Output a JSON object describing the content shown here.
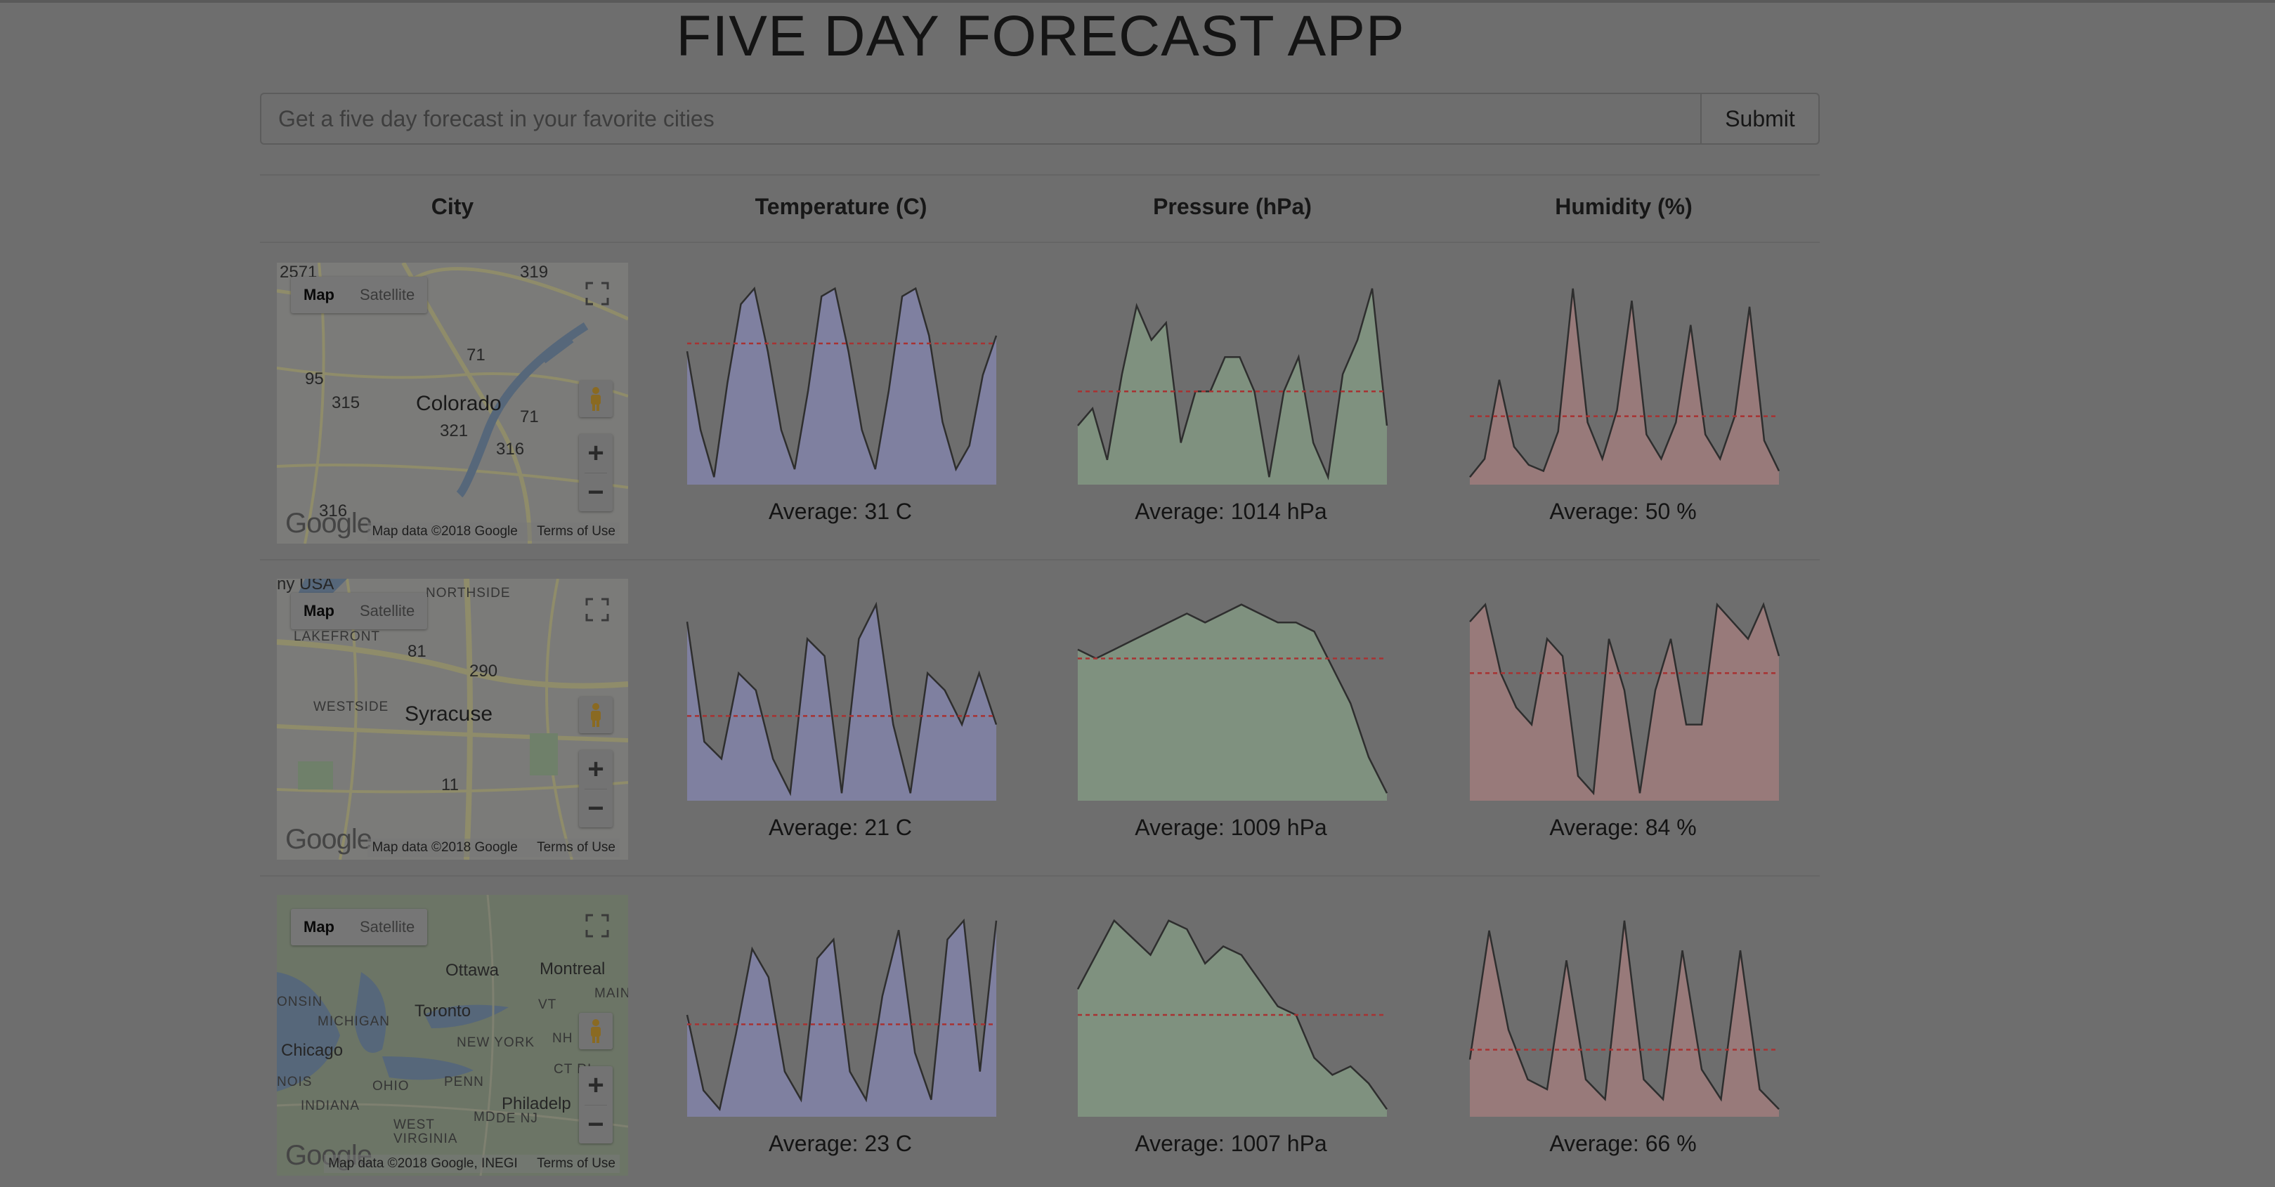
{
  "app": {
    "title": "FIVE DAY FORECAST APP"
  },
  "search": {
    "placeholder": "Get a five day forecast in your favorite cities",
    "value": "",
    "submit_label": "Submit"
  },
  "table": {
    "headers": [
      "City",
      "Temperature (C)",
      "Pressure (hPa)",
      "Humidity (%)"
    ]
  },
  "map_ui": {
    "map_label": "Map",
    "satellite_label": "Satellite",
    "terms": "Terms of Use",
    "logo_text": "Google"
  },
  "colors": {
    "temperature": "#7f80a0",
    "pressure": "#7f917f",
    "humidity": "#987a7a",
    "avg_line": "#a83232",
    "trace": "#2e2e2e"
  },
  "rows": [
    {
      "map": {
        "attribution": "Map data ©2018 Google",
        "labels": [
          "Colorado",
          "2571",
          "319",
          "71",
          "95",
          "315",
          "321",
          "316",
          "71",
          "316"
        ]
      },
      "temperature": {
        "average_text": "Average: 31 C"
      },
      "pressure": {
        "average_text": "Average: 1014 hPa"
      },
      "humidity": {
        "average_text": "Average: 50 %"
      }
    },
    {
      "map": {
        "attribution": "Map data ©2018 Google",
        "labels": [
          "Syracuse",
          "NORTHSIDE",
          "LAKEFRONT",
          "WESTSIDE",
          "81",
          "290",
          "11",
          "ny USA"
        ]
      },
      "temperature": {
        "average_text": "Average: 21 C"
      },
      "pressure": {
        "average_text": "Average: 1009 hPa"
      },
      "humidity": {
        "average_text": "Average: 84 %"
      }
    },
    {
      "map": {
        "attribution": "Map data ©2018 Google, INEGI",
        "labels": [
          "Ottawa",
          "Montreal",
          "Toronto",
          "MICHIGAN",
          "NEW YORK",
          "Chicago",
          "OHIO",
          "PENN",
          "INDIANA",
          "WEST VIRGINIA",
          "Philadelp",
          "MAINE",
          "VT",
          "NH",
          "MD",
          "DE NJ",
          "CT RI",
          "ONSIN",
          "NOIS"
        ]
      },
      "temperature": {
        "average_text": "Average: 23 C"
      },
      "pressure": {
        "average_text": "Average: 1007 hPa"
      },
      "humidity": {
        "average_text": "Average: 66 %"
      }
    }
  ],
  "chart_data": [
    {
      "type": "area",
      "series": [
        {
          "name": "",
          "values": [
            30,
            20,
            14,
            26,
            36,
            38,
            30,
            20,
            15,
            25,
            37,
            38,
            30,
            20,
            15,
            25,
            37,
            38,
            32,
            21,
            15,
            18,
            27,
            32
          ]
        }
      ],
      "average": 31
    },
    {
      "type": "area",
      "series": [
        {
          "name": "",
          "values": [
            1012,
            1013,
            1010,
            1015,
            1019,
            1017,
            1018,
            1011,
            1014,
            1014,
            1016,
            1016,
            1014,
            1009,
            1014,
            1016,
            1011,
            1009,
            1015,
            1017,
            1020,
            1012
          ]
        }
      ],
      "average": 1014
    },
    {
      "type": "area",
      "series": [
        {
          "name": "",
          "values": [
            30,
            36,
            62,
            40,
            34,
            32,
            45,
            92,
            48,
            36,
            52,
            88,
            44,
            36,
            48,
            80,
            44,
            36,
            50,
            86,
            42,
            32
          ]
        }
      ],
      "average": 50
    },
    {
      "type": "area",
      "series": [
        {
          "name": "",
          "values": [
            32,
            18,
            16,
            26,
            24,
            16,
            12,
            30,
            28,
            12,
            30,
            34,
            20,
            12,
            26,
            24,
            20,
            26,
            20
          ]
        }
      ],
      "average": 21
    },
    {
      "type": "area",
      "series": [
        {
          "name": "",
          "values": [
            1010,
            1009,
            1010,
            1011,
            1012,
            1013,
            1014,
            1013,
            1014,
            1015,
            1014,
            1013,
            1013,
            1012,
            1008,
            1004,
            998,
            994
          ]
        }
      ],
      "average": 1009
    },
    {
      "type": "area",
      "series": [
        {
          "name": "",
          "values": [
            90,
            92,
            84,
            80,
            78,
            88,
            86,
            72,
            70,
            88,
            82,
            70,
            82,
            88,
            78,
            78,
            92,
            90,
            88,
            92,
            86
          ]
        }
      ],
      "average": 84
    },
    {
      "type": "area",
      "series": [
        {
          "name": "",
          "values": [
            24,
            16,
            14,
            22,
            31,
            28,
            18,
            15,
            30,
            32,
            18,
            15,
            26,
            33,
            20,
            15,
            32,
            34,
            18,
            34
          ]
        }
      ],
      "average": 23
    },
    {
      "type": "area",
      "series": [
        {
          "name": "",
          "values": [
            1010,
            1014,
            1018,
            1016,
            1014,
            1018,
            1017,
            1013,
            1015,
            1014,
            1011,
            1008,
            1007,
            1002,
            1000,
            1001,
            999,
            996
          ]
        }
      ],
      "average": 1007
    },
    {
      "type": "area",
      "series": [
        {
          "name": "",
          "values": [
            64,
            90,
            70,
            60,
            58,
            84,
            60,
            56,
            92,
            60,
            56,
            86,
            62,
            56,
            86,
            58,
            54
          ]
        }
      ],
      "average": 66
    }
  ]
}
